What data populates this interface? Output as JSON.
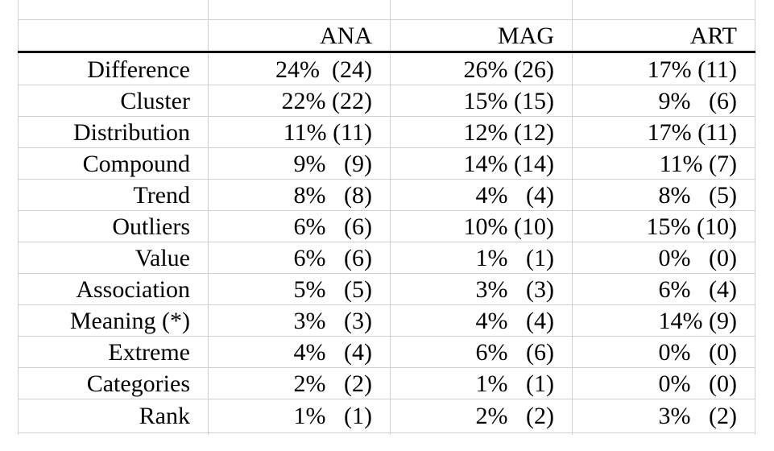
{
  "table": {
    "columns": [
      "",
      "ANA",
      "MAG",
      "ART"
    ],
    "rows": [
      {
        "label": "Difference",
        "ana": "24%  (24)",
        "mag": "26% (26)",
        "art": "17% (11)"
      },
      {
        "label": "Cluster",
        "ana": "22% (22)",
        "mag": "15% (15)",
        "art": "9%   (6)"
      },
      {
        "label": "Distribution",
        "ana": "11% (11)",
        "mag": "12% (12)",
        "art": "17% (11)"
      },
      {
        "label": "Compound",
        "ana": "9%   (9)",
        "mag": "14% (14)",
        "art": "11% (7)"
      },
      {
        "label": "Trend",
        "ana": "8%   (8)",
        "mag": "4%   (4)",
        "art": "8%   (5)"
      },
      {
        "label": "Outliers",
        "ana": "6%   (6)",
        "mag": "10% (10)",
        "art": "15% (10)"
      },
      {
        "label": "Value",
        "ana": "6%   (6)",
        "mag": "1%   (1)",
        "art": "0%   (0)"
      },
      {
        "label": "Association",
        "ana": "5%   (5)",
        "mag": "3%   (3)",
        "art": "6%   (4)"
      },
      {
        "label": "Meaning (*)",
        "ana": "3%   (3)",
        "mag": "4%   (4)",
        "art": "14% (9)"
      },
      {
        "label": "Extreme",
        "ana": "4%   (4)",
        "mag": "6%   (6)",
        "art": "0%   (0)"
      },
      {
        "label": "Categories",
        "ana": "2%   (2)",
        "mag": "1%   (1)",
        "art": "0%   (0)"
      },
      {
        "label": "Rank",
        "ana": "1%   (1)",
        "mag": "2%   (2)",
        "art": "3%   (2)"
      }
    ]
  }
}
